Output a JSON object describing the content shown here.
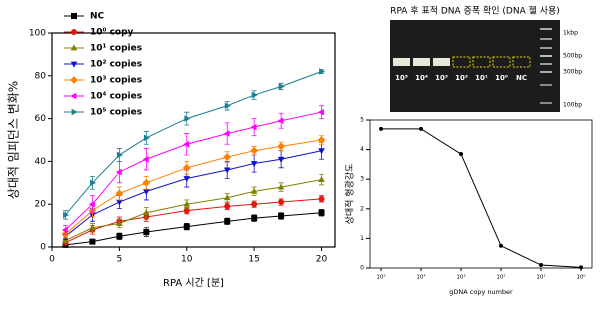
{
  "chart_data": [
    {
      "type": "line",
      "x_label": "RPA 시간 [분]",
      "y_label": "상대적 임피던스 변화%",
      "x": [
        1,
        3,
        5,
        7,
        10,
        13,
        15,
        17,
        20
      ],
      "xlim": [
        0,
        21
      ],
      "xticks": [
        0,
        5,
        10,
        15,
        20
      ],
      "ylim": [
        0,
        100
      ],
      "yticks": [
        0,
        20,
        40,
        60,
        80,
        100
      ],
      "series": [
        {
          "name": "NC",
          "color": "#000000",
          "marker": "square",
          "values": [
            1,
            2.5,
            5,
            7,
            9.5,
            12,
            13.5,
            14.5,
            16
          ],
          "errors": [
            0.5,
            1,
            1.5,
            2,
            1.5,
            1.5,
            1.5,
            1.5,
            1.5
          ]
        },
        {
          "name": "10⁰ copy",
          "color": "#e8150f",
          "marker": "circle",
          "values": [
            2,
            8,
            12,
            14,
            17,
            19,
            20,
            21,
            22.5
          ],
          "errors": [
            1,
            2,
            2,
            2,
            1.5,
            1.5,
            1.5,
            1.5,
            1.5
          ]
        },
        {
          "name": "10¹ copies",
          "color": "#808000",
          "marker": "triangle-up",
          "values": [
            3,
            9,
            11,
            16,
            20,
            23,
            26,
            28,
            31.5
          ],
          "errors": [
            1,
            2,
            2,
            2.5,
            2,
            2,
            2,
            2,
            2.5
          ]
        },
        {
          "name": "10² copies",
          "color": "#1010d0",
          "marker": "triangle-down",
          "values": [
            5,
            15,
            21,
            26,
            32,
            36,
            39,
            41,
            45
          ],
          "errors": [
            1.5,
            3,
            3,
            4,
            4,
            4,
            4,
            4,
            4
          ]
        },
        {
          "name": "10³ copies",
          "color": "#ff8000",
          "marker": "diamond",
          "values": [
            6,
            17,
            25,
            30,
            37,
            42,
            45,
            47,
            50
          ],
          "errors": [
            1.5,
            3,
            3,
            3,
            3,
            2.5,
            2,
            2,
            2
          ]
        },
        {
          "name": "10⁴ copies",
          "color": "#ff00ff",
          "marker": "triangle-left",
          "values": [
            8,
            20,
            35,
            41,
            48,
            53,
            56,
            59,
            63
          ],
          "errors": [
            2,
            4,
            5,
            5,
            5,
            5,
            4,
            3.5,
            3
          ]
        },
        {
          "name": "10⁵ copies",
          "color": "#1a7f8f",
          "marker": "triangle-right",
          "values": [
            15,
            30,
            43,
            51,
            60,
            66,
            71,
            75,
            82
          ],
          "errors": [
            2,
            3,
            3,
            3,
            3,
            2,
            2,
            1.5,
            1
          ]
        }
      ]
    },
    {
      "type": "line",
      "x_label": "gDNA copy number",
      "y_label": "상대적 형광강도",
      "categories": [
        "10⁵",
        "10⁴",
        "10³",
        "10²",
        "10¹",
        "10⁰"
      ],
      "ylim": [
        0,
        5
      ],
      "yticks": [
        0,
        1,
        2,
        3,
        4,
        5
      ],
      "series": [
        {
          "color": "#000000",
          "marker": "circle",
          "values": [
            4.7,
            4.7,
            3.85,
            0.75,
            0.1,
            0.02
          ]
        }
      ]
    }
  ],
  "gel": {
    "title": "RPA 후 표적 DNA 증폭 확인 (DNA 젤 사용)",
    "lane_labels": [
      "10⁵",
      "10⁴",
      "10³",
      "10²",
      "10¹",
      "10⁰",
      "NC"
    ],
    "ladder_labels": [
      "1kbp",
      "500bp",
      "300bp",
      "100bp"
    ]
  }
}
